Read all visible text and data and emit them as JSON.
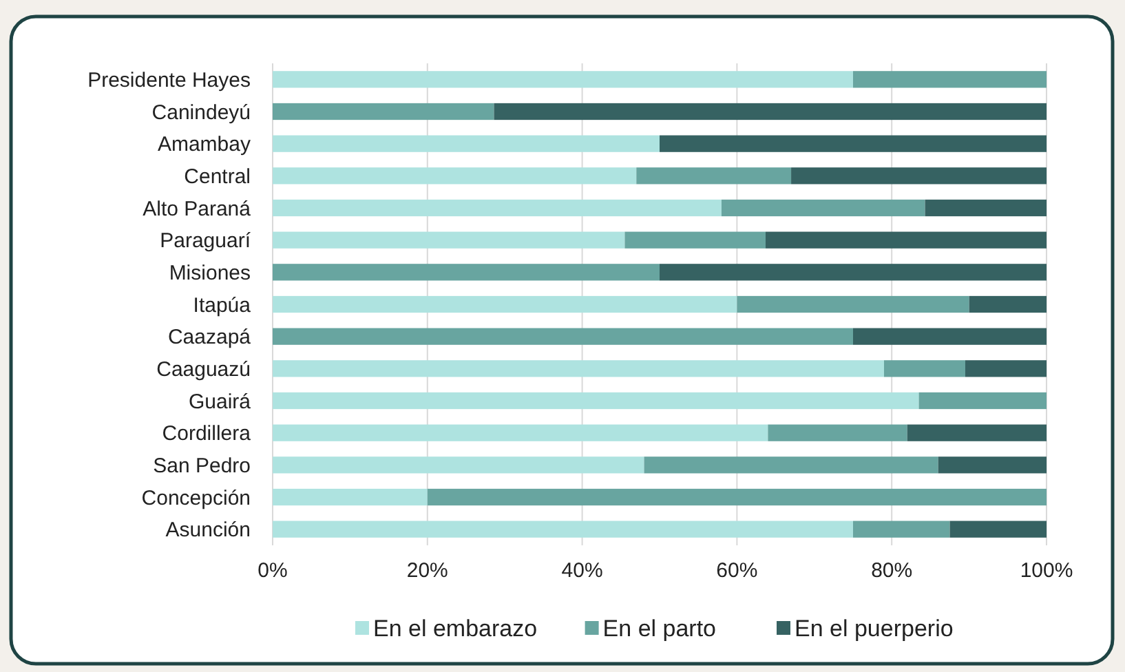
{
  "chart_data": {
    "type": "bar",
    "orientation": "horizontal",
    "stacked": true,
    "categories": [
      "Presidente Hayes",
      "Canindeyú",
      "Amambay",
      "Central",
      "Alto Paraná",
      "Paraguarí",
      "Misiones",
      "Itapúa",
      "Caazapá",
      "Caaguazú",
      "Guairá",
      "Cordillera",
      "San Pedro",
      "Concepción",
      "Asunción"
    ],
    "series": [
      {
        "name": "En el embarazo",
        "color": "#aee3e0",
        "values": [
          75,
          0,
          50,
          47,
          58,
          45.5,
          0,
          60,
          0,
          79,
          83.5,
          64,
          48,
          20,
          75
        ]
      },
      {
        "name": "En el parto",
        "color": "#68a5a0",
        "values": [
          25,
          28.6,
          0,
          20,
          26.3,
          18.2,
          50,
          30,
          75,
          10.5,
          16.5,
          18,
          38,
          80,
          12.5
        ]
      },
      {
        "name": "En el puerperio",
        "color": "#366262",
        "values": [
          0,
          71.4,
          50,
          33,
          15.7,
          36.3,
          50,
          10,
          25,
          10.5,
          0,
          18,
          14,
          0,
          12.5
        ]
      }
    ],
    "xlim": [
      0,
      100
    ],
    "xticks": [
      {
        "value": 0,
        "label": "0%"
      },
      {
        "value": 20,
        "label": "20%"
      },
      {
        "value": 40,
        "label": "40%"
      },
      {
        "value": 60,
        "label": "60%"
      },
      {
        "value": 80,
        "label": "80%"
      },
      {
        "value": 100,
        "label": "100%"
      }
    ],
    "grid": "x",
    "legend": "bottom"
  }
}
